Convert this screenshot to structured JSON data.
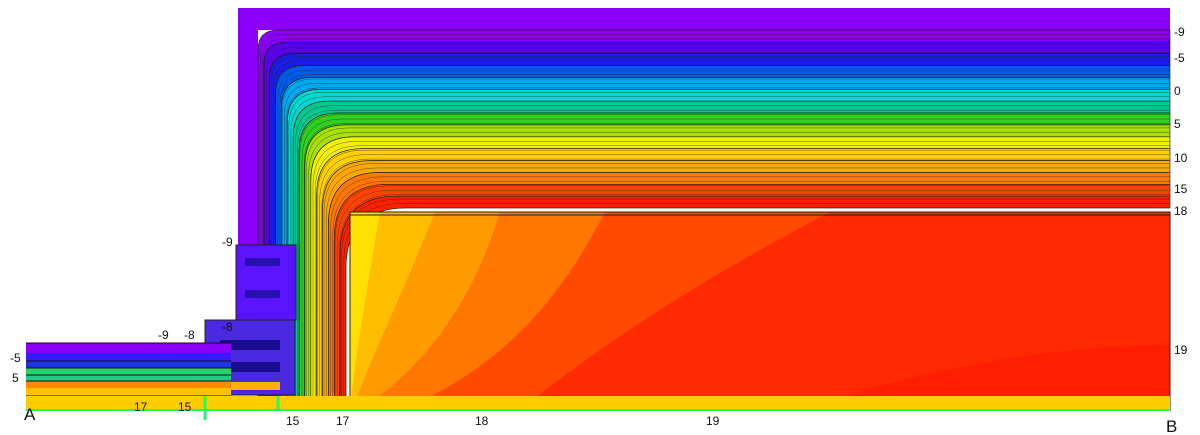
{
  "corner_labels": {
    "a": "A",
    "b": "B"
  },
  "scale": [
    "-9",
    "-5",
    "0",
    "5",
    "10",
    "15",
    "18",
    "19"
  ],
  "left_labels": [
    "-5",
    "5"
  ],
  "frame_labels": [
    "-9",
    "-9",
    "-8",
    "-8"
  ],
  "bottom_labels": [
    "17",
    "15",
    "15",
    "17",
    "18",
    "19"
  ],
  "colors": {
    "cold": "#7a00ff",
    "band_colors": [
      "#8a00f8",
      "#5a00f0",
      "#1c1ce8",
      "#005ce8",
      "#00a8f0",
      "#00d8d0",
      "#00c890",
      "#30d020",
      "#a8e000",
      "#f0f000",
      "#ffd000",
      "#ffa800",
      "#ff7800",
      "#ff4400",
      "#ff2000"
    ],
    "warm": "#ff2a00",
    "glass_edge": "#19ff66"
  }
}
